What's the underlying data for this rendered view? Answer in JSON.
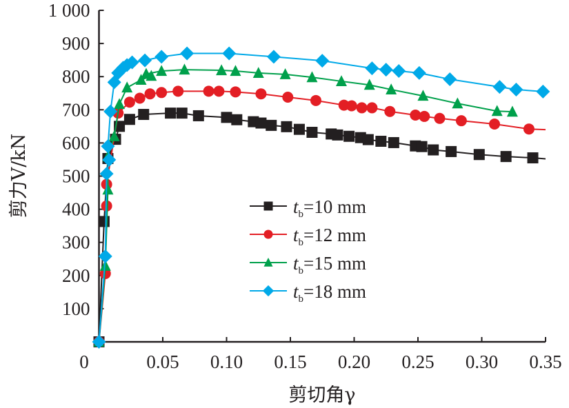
{
  "chart_data": {
    "type": "line",
    "title": "",
    "xlabel": "剪切角γ",
    "ylabel": "剪力V/kN",
    "xlim": [
      0,
      0.35
    ],
    "ylim": [
      0,
      1000
    ],
    "x_ticks": [
      0,
      0.05,
      0.1,
      0.15,
      0.2,
      0.25,
      0.3,
      0.35
    ],
    "x_tick_labels": [
      "0",
      "0.05",
      "0.10",
      "0.15",
      "0.20",
      "0.25",
      "0.30",
      "0.35"
    ],
    "y_ticks": [
      100,
      200,
      300,
      400,
      500,
      600,
      700,
      800,
      900,
      1000
    ],
    "y_tick_labels": [
      "100",
      "200",
      "300",
      "400",
      "500",
      "600",
      "700",
      "800",
      "900",
      "1 000"
    ],
    "grid": false,
    "legend_position": "center",
    "series": [
      {
        "name": "tb=10 mm",
        "legend_italic": "t",
        "legend_sub": "b",
        "legend_rest": "=10 mm",
        "color": "#231f20",
        "marker": "square",
        "points": [
          [
            0,
            0
          ],
          [
            0.004,
            363
          ],
          [
            0.007,
            553
          ],
          [
            0.013,
            611
          ],
          [
            0.016,
            650
          ],
          [
            0.024,
            671
          ],
          [
            0.035,
            686
          ],
          [
            0.056,
            690
          ],
          [
            0.065,
            690
          ],
          [
            0.078,
            682
          ],
          [
            0.1,
            677
          ],
          [
            0.108,
            670
          ],
          [
            0.121,
            664
          ],
          [
            0.127,
            660
          ],
          [
            0.135,
            653
          ],
          [
            0.147,
            649
          ],
          [
            0.157,
            641
          ],
          [
            0.167,
            632
          ],
          [
            0.182,
            627
          ],
          [
            0.187,
            624
          ],
          [
            0.196,
            620
          ],
          [
            0.205,
            616
          ],
          [
            0.211,
            610
          ],
          [
            0.221,
            605
          ],
          [
            0.231,
            601
          ],
          [
            0.248,
            591
          ],
          [
            0.253,
            589
          ],
          [
            0.262,
            579
          ],
          [
            0.276,
            574
          ],
          [
            0.298,
            565
          ],
          [
            0.319,
            559
          ],
          [
            0.34,
            555
          ]
        ],
        "line_end": [
          0.35,
          552
        ]
      },
      {
        "name": "tb=12 mm",
        "legend_italic": "t",
        "legend_sub": "b",
        "legend_rest": "=12 mm",
        "color": "#e31e24",
        "marker": "circle",
        "points": [
          [
            0,
            0
          ],
          [
            0.005,
            206
          ],
          [
            0.006,
            410
          ],
          [
            0.006,
            475
          ],
          [
            0.015,
            690
          ],
          [
            0.024,
            723
          ],
          [
            0.032,
            735
          ],
          [
            0.04,
            748
          ],
          [
            0.049,
            752
          ],
          [
            0.062,
            756
          ],
          [
            0.086,
            756
          ],
          [
            0.094,
            756
          ],
          [
            0.107,
            754
          ],
          [
            0.127,
            748
          ],
          [
            0.148,
            738
          ],
          [
            0.17,
            728
          ],
          [
            0.192,
            714
          ],
          [
            0.198,
            712
          ],
          [
            0.206,
            706
          ],
          [
            0.214,
            706
          ],
          [
            0.228,
            695
          ],
          [
            0.248,
            684
          ],
          [
            0.255,
            680
          ],
          [
            0.267,
            674
          ],
          [
            0.284,
            667
          ],
          [
            0.31,
            657
          ],
          [
            0.337,
            642
          ]
        ],
        "line_end": [
          0.35,
          640
        ]
      },
      {
        "name": "tb=15 mm",
        "legend_italic": "t",
        "legend_sub": "b",
        "legend_rest": "=15 mm",
        "color": "#00a04b",
        "marker": "triangle",
        "points": [
          [
            0,
            0
          ],
          [
            0.005,
            229
          ],
          [
            0.007,
            459
          ],
          [
            0.007,
            559
          ],
          [
            0.012,
            620
          ],
          [
            0.016,
            717
          ],
          [
            0.022,
            767
          ],
          [
            0.033,
            790
          ],
          [
            0.041,
            802
          ],
          [
            0.037,
            808
          ],
          [
            0.049,
            817
          ],
          [
            0.067,
            821
          ],
          [
            0.096,
            819
          ],
          [
            0.107,
            817
          ],
          [
            0.125,
            811
          ],
          [
            0.146,
            807
          ],
          [
            0.167,
            798
          ],
          [
            0.19,
            786
          ],
          [
            0.212,
            775
          ],
          [
            0.229,
            761
          ],
          [
            0.254,
            742
          ],
          [
            0.281,
            719
          ],
          [
            0.312,
            696
          ],
          [
            0.324,
            694
          ]
        ],
        "line_end": null
      },
      {
        "name": "tb=18 mm",
        "legend_italic": "t",
        "legend_sub": "b",
        "legend_rest": "=18 mm",
        "color": "#00a9e8",
        "marker": "diamond",
        "points": [
          [
            0,
            0
          ],
          [
            0.005,
            258
          ],
          [
            0.006,
            507
          ],
          [
            0.008,
            549
          ],
          [
            0.007,
            590
          ],
          [
            0.009,
            695
          ],
          [
            0.012,
            783
          ],
          [
            0.015,
            811
          ],
          [
            0.019,
            827
          ],
          [
            0.022,
            835
          ],
          [
            0.026,
            843
          ],
          [
            0.036,
            849
          ],
          [
            0.049,
            860
          ],
          [
            0.069,
            870
          ],
          [
            0.102,
            870
          ],
          [
            0.137,
            860
          ],
          [
            0.175,
            848
          ],
          [
            0.214,
            825
          ],
          [
            0.225,
            821
          ],
          [
            0.235,
            817
          ],
          [
            0.251,
            811
          ],
          [
            0.275,
            792
          ],
          [
            0.314,
            769
          ],
          [
            0.327,
            761
          ],
          [
            0.348,
            755
          ]
        ],
        "line_end": null
      }
    ]
  }
}
